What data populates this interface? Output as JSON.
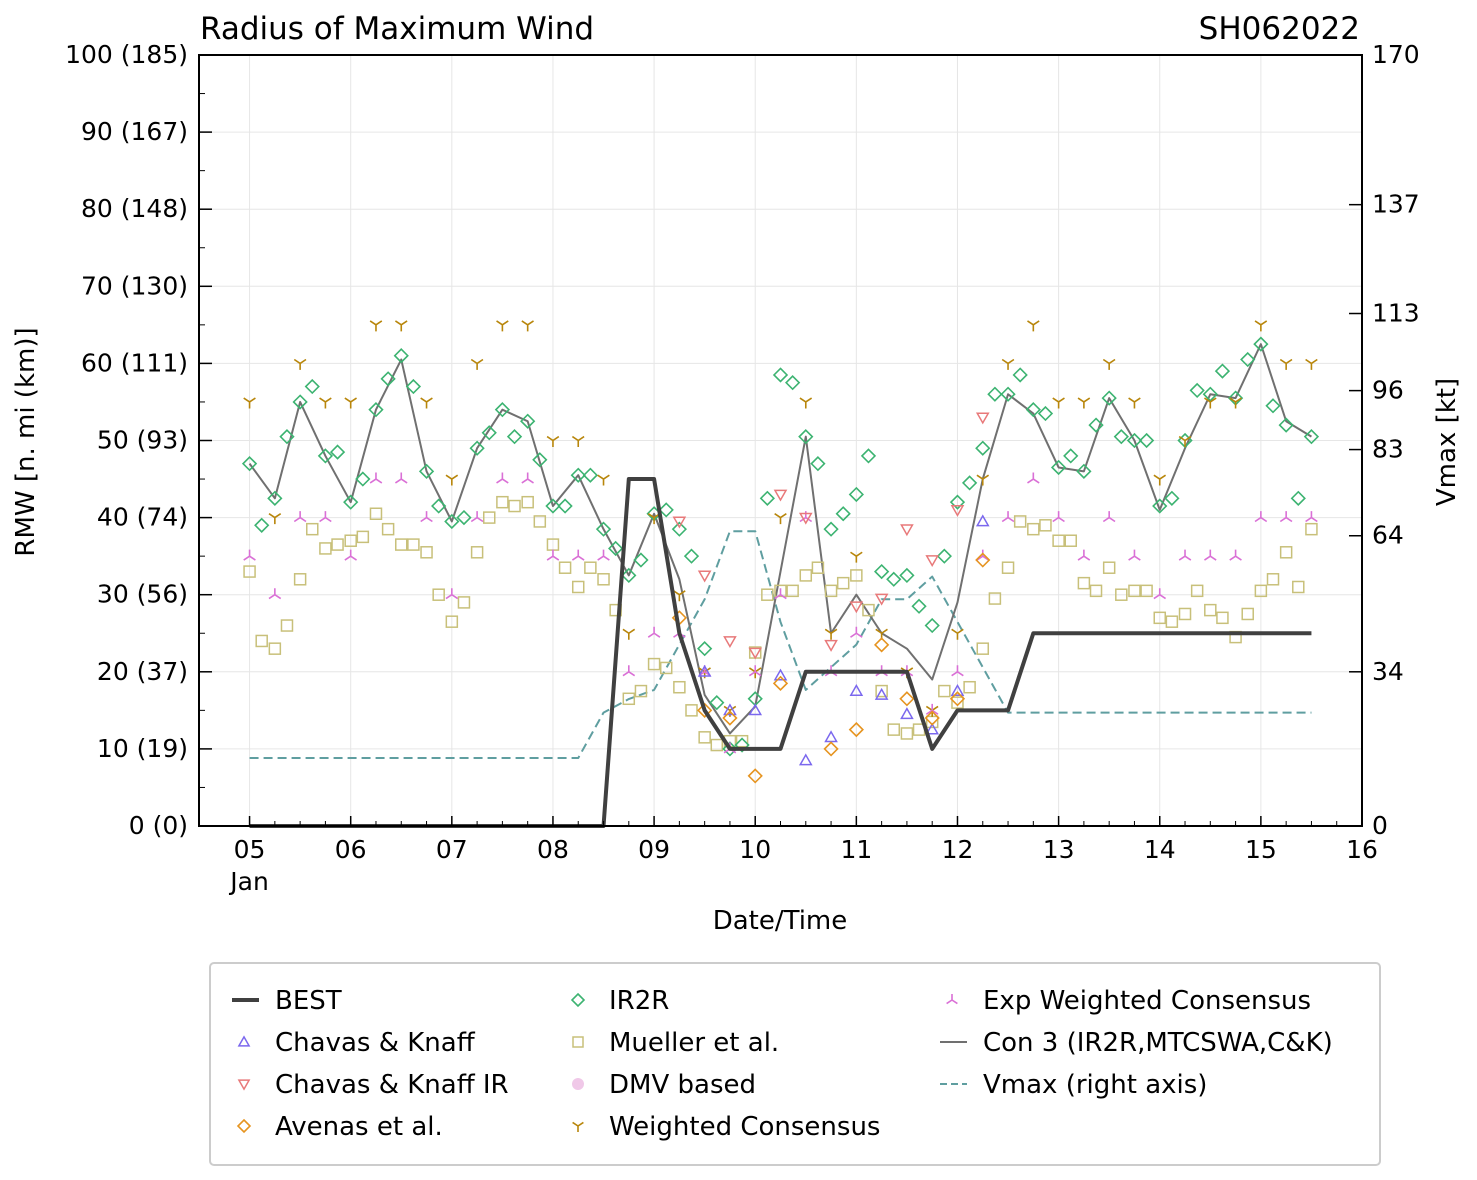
{
  "chart_data": {
    "type": "line",
    "title": "Radius of Maximum Wind",
    "storm_id": "SH062022",
    "xlabel": "Date/Time",
    "ylabel": "RMW [n. mi (km)]",
    "ylabel_right": "Vmax [kt]",
    "xlim": [
      4.5,
      16
    ],
    "ylim": [
      0,
      100
    ],
    "ylim_right": [
      0,
      170
    ],
    "x_ticks": [
      {
        "x": 5,
        "label": "05",
        "sub": "Jan"
      },
      {
        "x": 6,
        "label": "06",
        "sub": ""
      },
      {
        "x": 7,
        "label": "07",
        "sub": ""
      },
      {
        "x": 8,
        "label": "08",
        "sub": ""
      },
      {
        "x": 9,
        "label": "09",
        "sub": ""
      },
      {
        "x": 10,
        "label": "10",
        "sub": ""
      },
      {
        "x": 11,
        "label": "11",
        "sub": ""
      },
      {
        "x": 12,
        "label": "12",
        "sub": ""
      },
      {
        "x": 13,
        "label": "13",
        "sub": ""
      },
      {
        "x": 14,
        "label": "14",
        "sub": ""
      },
      {
        "x": 15,
        "label": "15",
        "sub": ""
      },
      {
        "x": 16,
        "label": "16",
        "sub": ""
      }
    ],
    "y_ticks": [
      {
        "v": 0,
        "label": "0 (0)"
      },
      {
        "v": 10,
        "label": "10 (19)"
      },
      {
        "v": 20,
        "label": "20 (37)"
      },
      {
        "v": 30,
        "label": "30 (56)"
      },
      {
        "v": 40,
        "label": "40 (74)"
      },
      {
        "v": 50,
        "label": "50 (93)"
      },
      {
        "v": 60,
        "label": "60 (111)"
      },
      {
        "v": 70,
        "label": "70 (130)"
      },
      {
        "v": 80,
        "label": "80 (148)"
      },
      {
        "v": 90,
        "label": "90 (167)"
      },
      {
        "v": 100,
        "label": "100 (185)"
      }
    ],
    "y_right_ticks": [
      {
        "v": 0,
        "label": "0"
      },
      {
        "v": 34,
        "label": "34"
      },
      {
        "v": 64,
        "label": "64"
      },
      {
        "v": 83,
        "label": "83"
      },
      {
        "v": 96,
        "label": "96"
      },
      {
        "v": 113,
        "label": "113"
      },
      {
        "v": 137,
        "label": "137"
      },
      {
        "v": 170,
        "label": "170"
      }
    ],
    "series": [
      {
        "name": "BEST",
        "kind": "line",
        "color": "#404040",
        "x": [
          5,
          8.5,
          8.75,
          9,
          9.25,
          9.5,
          9.75,
          10,
          10.25,
          10.5,
          10.75,
          11,
          11.25,
          11.5,
          11.75,
          12,
          12.25,
          12.5,
          12.75,
          13,
          14,
          15,
          15.5
        ],
        "y": [
          0,
          0,
          45,
          45,
          25,
          15,
          10,
          10,
          10,
          20,
          20,
          20,
          20,
          20,
          10,
          15,
          15,
          15,
          25,
          25,
          25,
          25,
          25
        ]
      },
      {
        "name": "Chavas & Knaff",
        "kind": "scatter",
        "marker": "tri-up",
        "color": "#7b68ee",
        "x": [
          9.5,
          9.75,
          10,
          10.25,
          10.5,
          10.75,
          11,
          11.25,
          11.5,
          11.75,
          12,
          12.25
        ],
        "y": [
          20,
          15,
          15,
          19.5,
          8.5,
          11.5,
          17.5,
          17,
          14.5,
          12.5,
          17.5,
          39.5
        ]
      },
      {
        "name": "Chavas & Knaff IR",
        "kind": "scatter",
        "marker": "tri-down",
        "color": "#e8797a",
        "x": [
          9.25,
          9.5,
          9.75,
          10,
          10.25,
          10.5,
          10.75,
          11,
          11.25,
          11.5,
          11.75,
          12,
          12.25
        ],
        "y": [
          39.5,
          32.5,
          24,
          22.5,
          43,
          40,
          23.5,
          28.5,
          29.5,
          38.5,
          34.5,
          41,
          53
        ]
      },
      {
        "name": "Avenas et al.",
        "kind": "scatter",
        "marker": "diamond",
        "color": "#e69420",
        "x": [
          9.25,
          9.5,
          9.75,
          10,
          10.25,
          10.75,
          11,
          11.25,
          11.5,
          11.75,
          12,
          12.25
        ],
        "y": [
          27,
          15,
          14,
          6.5,
          18.5,
          10,
          12.5,
          23.5,
          16.5,
          14,
          16.5,
          34.5
        ]
      },
      {
        "name": "IR2R",
        "kind": "scatter",
        "marker": "diamond",
        "color": "#3cb371",
        "x": [
          5,
          5.12,
          5.25,
          5.37,
          5.5,
          5.62,
          5.75,
          5.87,
          6,
          6.12,
          6.25,
          6.37,
          6.5,
          6.62,
          6.75,
          6.87,
          7,
          7.12,
          7.25,
          7.37,
          7.5,
          7.62,
          7.75,
          7.87,
          8,
          8.12,
          8.25,
          8.37,
          8.5,
          8.62,
          8.75,
          8.87,
          9,
          9.12,
          9.25,
          9.37,
          9.5,
          9.62,
          9.75,
          9.87,
          10,
          10.12,
          10.25,
          10.37,
          10.5,
          10.62,
          10.75,
          10.87,
          11,
          11.12,
          11.25,
          11.37,
          11.5,
          11.62,
          11.75,
          11.87,
          12,
          12.12,
          12.25,
          12.37,
          12.5,
          12.62,
          12.75,
          12.87,
          13,
          13.12,
          13.25,
          13.37,
          13.5,
          13.62,
          13.75,
          13.87,
          14,
          14.12,
          14.25,
          14.37,
          14.5,
          14.62,
          14.75,
          14.87,
          15,
          15.12,
          15.25,
          15.37,
          15.5
        ],
        "y": [
          47,
          39,
          42.5,
          50.5,
          55,
          57,
          48,
          48.5,
          42,
          45,
          54,
          58,
          61,
          57,
          46,
          41.5,
          39.5,
          40,
          49,
          51,
          54,
          50.5,
          52.5,
          47.5,
          41.5,
          41.5,
          45.5,
          45.5,
          38.5,
          36,
          32.5,
          34.5,
          40.5,
          41,
          38.5,
          35,
          23,
          16,
          10,
          10.5,
          16.5,
          42.5,
          58.5,
          57.5,
          50.5,
          47,
          38.5,
          40.5,
          43,
          48,
          33,
          32,
          32.5,
          28.5,
          26,
          35,
          42,
          44.5,
          49,
          56,
          56,
          58.5,
          54,
          53.5,
          46.5,
          48,
          46,
          52,
          55.5,
          50.5,
          50,
          50,
          41.5,
          42.5,
          50,
          56.5,
          56,
          59,
          55.5,
          60.5,
          62.5,
          54.5,
          52,
          42.5,
          50.5
        ]
      },
      {
        "name": "Mueller et al.",
        "kind": "scatter",
        "marker": "square",
        "color": "#c8c07a",
        "x": [
          5,
          5.12,
          5.25,
          5.37,
          5.5,
          5.62,
          5.75,
          5.87,
          6,
          6.12,
          6.25,
          6.37,
          6.5,
          6.62,
          6.75,
          6.87,
          7,
          7.12,
          7.25,
          7.37,
          7.5,
          7.62,
          7.75,
          7.87,
          8,
          8.12,
          8.25,
          8.37,
          8.5,
          8.62,
          8.75,
          8.87,
          9,
          9.12,
          9.25,
          9.37,
          9.5,
          9.62,
          9.75,
          9.87,
          10,
          10.12,
          10.25,
          10.37,
          10.5,
          10.62,
          10.75,
          10.87,
          11,
          11.12,
          11.25,
          11.37,
          11.5,
          11.62,
          11.75,
          11.87,
          12,
          12.12,
          12.25,
          12.37,
          12.5,
          12.62,
          12.75,
          12.87,
          13,
          13.12,
          13.25,
          13.37,
          13.5,
          13.62,
          13.75,
          13.87,
          14,
          14.12,
          14.25,
          14.37,
          14.5,
          14.62,
          14.75,
          14.87,
          15,
          15.12,
          15.25,
          15.37,
          15.5
        ],
        "y": [
          33,
          24,
          23,
          26,
          32,
          38.5,
          36,
          36.5,
          37,
          37.5,
          40.5,
          38.5,
          36.5,
          36.5,
          35.5,
          30,
          26.5,
          29,
          35.5,
          40,
          42,
          41.5,
          42,
          39.5,
          36.5,
          33.5,
          31,
          33.5,
          32,
          28,
          16.5,
          17.5,
          21,
          20.5,
          18,
          15,
          11.5,
          10.5,
          11,
          11,
          22.5,
          30,
          30.5,
          30.5,
          32.5,
          33.5,
          30.5,
          31.5,
          32.5,
          28,
          17.5,
          12.5,
          12,
          12.5,
          13.5,
          17.5,
          16,
          18,
          23,
          29.5,
          33.5,
          39.5,
          38.5,
          39,
          37,
          37,
          31.5,
          30.5,
          33.5,
          30,
          30.5,
          30.5,
          27,
          26.5,
          27.5,
          30.5,
          28,
          27,
          24.5,
          27.5,
          30.5,
          32,
          35.5,
          31,
          38.5
        ]
      },
      {
        "name": "DMV based",
        "kind": "scatter",
        "marker": "circle",
        "color": "#f0c8e8",
        "x": [],
        "y": []
      },
      {
        "name": "Weighted Consensus",
        "kind": "scatter",
        "marker": "tri-y",
        "color": "#b8860b",
        "x": [
          5,
          5.25,
          5.5,
          5.75,
          6,
          6.25,
          6.5,
          6.75,
          7,
          7.25,
          7.5,
          7.75,
          8,
          8.25,
          8.5,
          8.75,
          9,
          9.25,
          9.5,
          9.75,
          10,
          10.25,
          10.5,
          10.75,
          11,
          11.25,
          11.5,
          11.75,
          12,
          12.25,
          12.5,
          12.75,
          13,
          13.25,
          13.5,
          13.75,
          14,
          14.25,
          14.5,
          14.75,
          15,
          15.25,
          15.5
        ],
        "y": [
          55,
          40,
          60,
          55,
          55,
          65,
          65,
          55,
          45,
          60,
          65,
          65,
          50,
          50,
          45,
          25,
          40,
          30,
          20,
          15,
          20,
          40,
          55,
          25,
          35,
          25,
          20,
          15,
          25,
          45,
          60,
          65,
          55,
          55,
          60,
          55,
          45,
          50,
          55,
          55,
          65,
          60,
          60
        ]
      },
      {
        "name": "Exp Weighted Consensus",
        "kind": "scatter",
        "marker": "tri-inv",
        "color": "#da70d6",
        "x": [
          5,
          5.25,
          5.5,
          5.75,
          6,
          6.25,
          6.5,
          6.75,
          7,
          7.25,
          7.5,
          7.75,
          8,
          8.25,
          8.5,
          8.75,
          9,
          9.25,
          9.5,
          9.75,
          10,
          10.25,
          10.5,
          10.75,
          11,
          11.25,
          11.5,
          11.75,
          12,
          12.25,
          12.5,
          12.75,
          13,
          13.25,
          13.5,
          13.75,
          14,
          14.25,
          14.5,
          14.75,
          15,
          15.25,
          15.5
        ],
        "y": [
          35,
          30,
          40,
          40,
          35,
          45,
          45,
          40,
          30,
          40,
          45,
          45,
          35,
          35,
          35,
          20,
          25,
          25,
          20,
          10,
          20,
          30,
          40,
          20,
          25,
          20,
          20,
          15,
          20,
          35,
          40,
          45,
          40,
          35,
          40,
          35,
          30,
          35,
          35,
          35,
          40,
          40,
          40
        ]
      },
      {
        "name": "Con 3 (IR2R,MTCSWA,C&K)",
        "kind": "line",
        "color": "#707070",
        "x": [
          5,
          5.25,
          5.5,
          5.75,
          6,
          6.25,
          6.5,
          6.75,
          7,
          7.25,
          7.5,
          7.75,
          8,
          8.25,
          8.5,
          8.75,
          9,
          9.25,
          9.5,
          9.75,
          10,
          10.25,
          10.5,
          10.75,
          11,
          11.25,
          11.5,
          11.75,
          12,
          12.25,
          12.5,
          12.75,
          13,
          13.25,
          13.5,
          13.75,
          14,
          14.25,
          14.5,
          14.75,
          15,
          15.25,
          15.5
        ],
        "y": [
          47,
          42.5,
          55,
          48,
          42,
          54,
          60.5,
          46,
          39.5,
          49,
          54,
          52.5,
          41.5,
          45.5,
          38.5,
          32.5,
          40.5,
          32,
          17,
          12,
          15.5,
          33,
          50.5,
          25,
          30,
          25,
          23,
          19,
          29,
          45,
          56,
          53.5,
          46.5,
          46,
          55.5,
          50,
          41,
          49,
          56,
          55.5,
          62.5,
          52.5,
          50.5
        ]
      },
      {
        "name": "Vmax (right axis)",
        "kind": "line",
        "axis": "right",
        "color": "#5f9ea0",
        "x": [
          5,
          8.25,
          8.5,
          8.75,
          9,
          9.25,
          9.5,
          9.75,
          10,
          10.25,
          10.5,
          10.75,
          11,
          11.25,
          11.5,
          11.75,
          12,
          12.25,
          12.5,
          13,
          14,
          15,
          15.5
        ],
        "y": [
          15,
          15,
          25,
          28,
          30,
          40,
          50,
          65,
          65,
          45,
          30,
          35,
          40,
          50,
          50,
          55,
          45,
          35,
          25,
          25,
          25,
          25,
          25
        ]
      }
    ],
    "legend": [
      {
        "label": "BEST",
        "marker": "thick-line",
        "color": "#404040"
      },
      {
        "label": "IR2R",
        "marker": "diamond",
        "color": "#3cb371"
      },
      {
        "label": "Exp Weighted Consensus",
        "marker": "tri-inv",
        "color": "#da70d6"
      },
      {
        "label": "Chavas & Knaff",
        "marker": "tri-up",
        "color": "#7b68ee"
      },
      {
        "label": "Mueller et al.",
        "marker": "square",
        "color": "#c8c07a"
      },
      {
        "label": "Con 3 (IR2R,MTCSWA,C&K)",
        "marker": "thin-line",
        "color": "#707070"
      },
      {
        "label": "Chavas & Knaff IR",
        "marker": "tri-down",
        "color": "#e8797a"
      },
      {
        "label": "DMV based",
        "marker": "circle",
        "color": "#f0c8e8"
      },
      {
        "label": "Vmax (right axis)",
        "marker": "dashed-line",
        "color": "#5f9ea0"
      },
      {
        "label": "Avenas et al.",
        "marker": "diamond",
        "color": "#e69420"
      },
      {
        "label": "Weighted Consensus",
        "marker": "tri-y",
        "color": "#b8860b"
      }
    ],
    "legend_placement": "bottom"
  }
}
